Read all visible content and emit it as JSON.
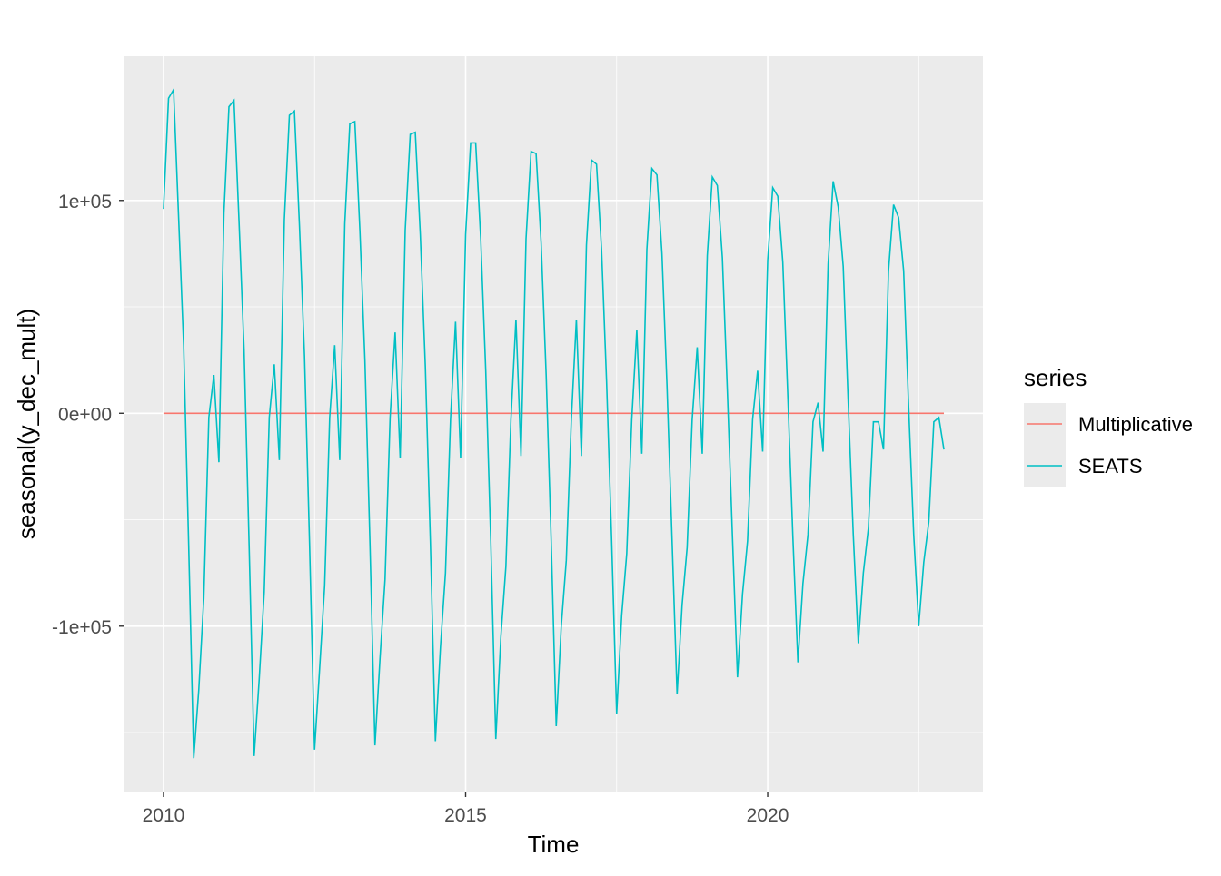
{
  "chart_data": {
    "type": "line",
    "title": "",
    "xlabel": "Time",
    "ylabel": "seasonal(y_dec_mult)",
    "x_start": 2010,
    "frequency": 12,
    "xlim": [
      2009.354,
      2023.563
    ],
    "ylim": [
      -177700,
      167700
    ],
    "x_ticks": [
      2010,
      2015,
      2020
    ],
    "x_tick_labels": [
      "2010",
      "2015",
      "2020"
    ],
    "y_ticks": [
      -100000,
      0,
      100000
    ],
    "y_tick_labels": [
      "-1e+05",
      "0e+00",
      "1e+05"
    ],
    "grid": true,
    "legend": {
      "title": "series",
      "placement": "right"
    },
    "series": [
      {
        "name": "Multiplicative",
        "color": "#F8766D",
        "values_by_year": [
          [
            1,
            1,
            1,
            1,
            1,
            1,
            1,
            1,
            1,
            1,
            1,
            1
          ],
          [
            1,
            1,
            1,
            1,
            1,
            1,
            1,
            1,
            1,
            1,
            1,
            1
          ],
          [
            1,
            1,
            1,
            1,
            1,
            1,
            1,
            1,
            1,
            1,
            1,
            1
          ],
          [
            1,
            1,
            1,
            1,
            1,
            1,
            1,
            1,
            1,
            1,
            1,
            1
          ],
          [
            1,
            1,
            1,
            1,
            1,
            1,
            1,
            1,
            1,
            1,
            1,
            1
          ],
          [
            1,
            1,
            1,
            1,
            1,
            1,
            1,
            1,
            1,
            1,
            1,
            1
          ],
          [
            1,
            1,
            1,
            1,
            1,
            1,
            1,
            1,
            1,
            1,
            1,
            1
          ],
          [
            1,
            1,
            1,
            1,
            1,
            1,
            1,
            1,
            1,
            1,
            1,
            1
          ],
          [
            1,
            1,
            1,
            1,
            1,
            1,
            1,
            1,
            1,
            1,
            1,
            1
          ],
          [
            1,
            1,
            1,
            1,
            1,
            1,
            1,
            1,
            1,
            1,
            1,
            1
          ],
          [
            1,
            1,
            1,
            1,
            1,
            1,
            1,
            1,
            1,
            1,
            1,
            1
          ],
          [
            1,
            1,
            1,
            1,
            1,
            1,
            1,
            1,
            1,
            1,
            1,
            1
          ],
          [
            1,
            1,
            1,
            1,
            1,
            1,
            1,
            1,
            1,
            1,
            1,
            1
          ]
        ]
      },
      {
        "name": "SEATS",
        "color": "#00BFC4",
        "values_by_year": [
          [
            96000,
            148000,
            152000,
            92000,
            32000,
            -62000,
            -162000,
            -130000,
            -87000,
            -2000,
            18000,
            -23000
          ],
          [
            94000,
            144000,
            147000,
            90000,
            30000,
            -62000,
            -161000,
            -125000,
            -84000,
            -2000,
            23000,
            -22000
          ],
          [
            91000,
            140000,
            142000,
            88000,
            27000,
            -61000,
            -158000,
            -120000,
            -81000,
            -2000,
            32000,
            -22000
          ],
          [
            89000,
            136000,
            137000,
            86000,
            25000,
            -61000,
            -156000,
            -115000,
            -78000,
            -2000,
            38000,
            -21000
          ],
          [
            86000,
            131000,
            132000,
            84000,
            22000,
            -60000,
            -154000,
            -110000,
            -75000,
            -3000,
            43000,
            -21000
          ],
          [
            84000,
            127000,
            127000,
            82000,
            20000,
            -60000,
            -153000,
            -105000,
            -72000,
            -3000,
            44000,
            -20000
          ],
          [
            82000,
            123000,
            122000,
            80000,
            18000,
            -60000,
            -147000,
            -100000,
            -69000,
            -3000,
            44000,
            -20000
          ],
          [
            79000,
            119000,
            117000,
            77000,
            15000,
            -59000,
            -141000,
            -95000,
            -66000,
            -3000,
            39000,
            -19000
          ],
          [
            77000,
            115000,
            112000,
            75000,
            13000,
            -59000,
            -132000,
            -90000,
            -63000,
            -3000,
            31000,
            -19000
          ],
          [
            74000,
            111000,
            107000,
            73000,
            10000,
            -58000,
            -124000,
            -85000,
            -60000,
            -3000,
            20000,
            -18000
          ],
          [
            72000,
            106000,
            102000,
            71000,
            8000,
            -58000,
            -117000,
            -80000,
            -57000,
            -4000,
            5000,
            -18000
          ],
          [
            70000,
            109000,
            97000,
            69000,
            5000,
            -57000,
            -108000,
            -75000,
            -54000,
            -4000,
            -4000,
            -17000
          ],
          [
            67000,
            98000,
            92000,
            67000,
            3000,
            -57000,
            -100000,
            -70000,
            -51000,
            -4000,
            -2000,
            -17000
          ]
        ]
      }
    ]
  }
}
